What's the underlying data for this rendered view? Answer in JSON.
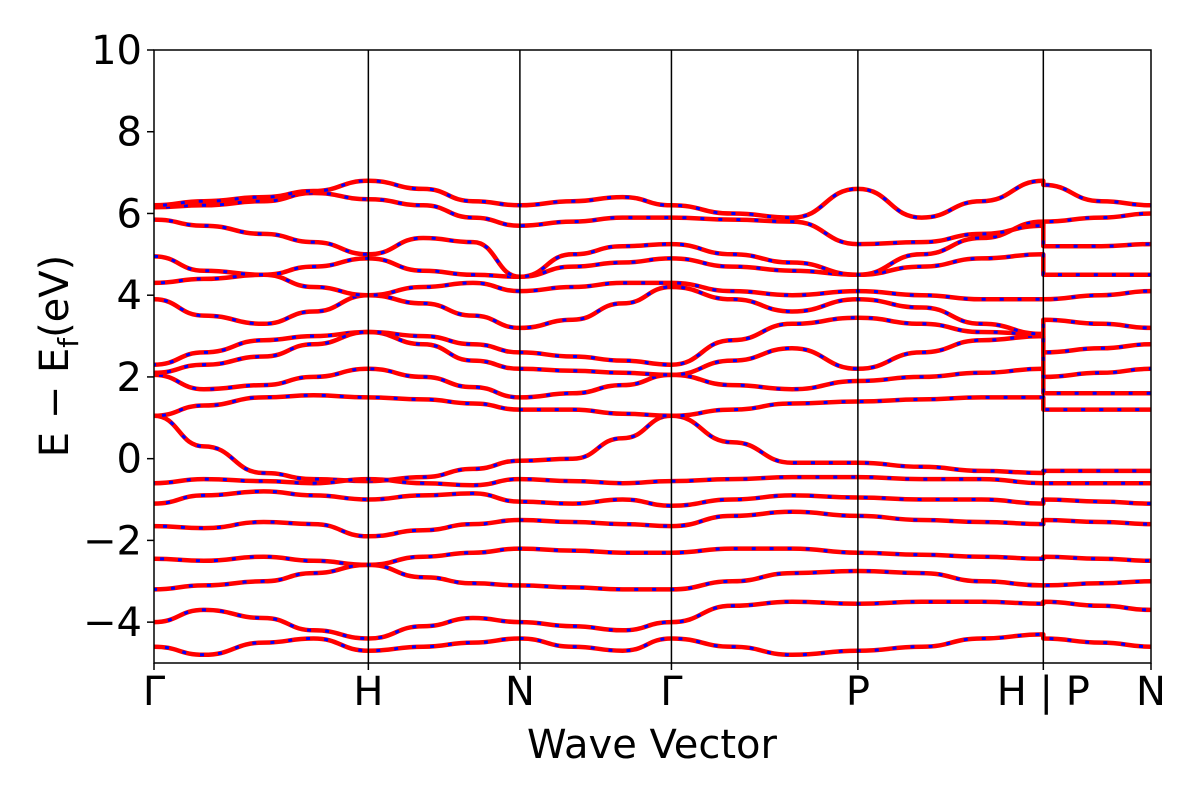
{
  "chart_data": {
    "type": "line",
    "title": "",
    "xlabel": "Wave Vector",
    "ylabel_main": "E − E",
    "ylabel_sub": "f",
    "ylabel_unit": "(eV)",
    "ylim": [
      -5,
      10
    ],
    "y_ticks": [
      -4,
      -2,
      0,
      2,
      4,
      6,
      8,
      10
    ],
    "y_tick_labels": [
      "−4",
      "−2",
      "0",
      "2",
      "4",
      "6",
      "8",
      "10"
    ],
    "x_range": [
      0,
      1
    ],
    "k_points": [
      {
        "label": "Γ",
        "x": 0.0
      },
      {
        "label": "H",
        "x": 0.215
      },
      {
        "label": "N",
        "x": 0.367
      },
      {
        "label": "Γ",
        "x": 0.519
      },
      {
        "label": "P",
        "x": 0.706
      },
      {
        "label": "H | P",
        "x": 0.892
      },
      {
        "label": "N",
        "x": 1.0
      }
    ],
    "colors": {
      "band_red": "#ff0000",
      "band_blue": "#0000ff"
    },
    "grid": false,
    "series": [
      {
        "color": "#ff0000",
        "style": "solid",
        "x": [
          0.0,
          0.05,
          0.11,
          0.16,
          0.215,
          0.27,
          0.32,
          0.367,
          0.42,
          0.47,
          0.519,
          0.58,
          0.64,
          0.706,
          0.77,
          0.83,
          0.892,
          0.892,
          0.95,
          1.0
        ],
        "y": [
          1.05,
          0.3,
          -0.35,
          -0.5,
          -0.55,
          -0.45,
          -0.25,
          -0.05,
          0.0,
          0.5,
          1.05,
          0.4,
          -0.1,
          -0.1,
          -0.2,
          -0.3,
          -0.35,
          -0.3,
          -0.3,
          -0.3
        ]
      },
      {
        "color": "#ff0000",
        "style": "solid",
        "x": [
          0.0,
          0.05,
          0.11,
          0.16,
          0.215,
          0.27,
          0.32,
          0.367,
          0.42,
          0.47,
          0.519,
          0.58,
          0.64,
          0.706,
          0.77,
          0.83,
          0.892,
          0.892,
          0.95,
          1.0
        ],
        "y": [
          -0.6,
          -0.5,
          -0.55,
          -0.6,
          -0.5,
          -0.6,
          -0.65,
          -0.5,
          -0.55,
          -0.6,
          -0.55,
          -0.5,
          -0.45,
          -0.45,
          -0.5,
          -0.5,
          -0.6,
          -0.6,
          -0.6,
          -0.6
        ]
      },
      {
        "color": "#ff0000",
        "style": "solid",
        "x": [
          0.0,
          0.05,
          0.11,
          0.16,
          0.215,
          0.27,
          0.32,
          0.367,
          0.42,
          0.47,
          0.519,
          0.58,
          0.64,
          0.706,
          0.77,
          0.83,
          0.892,
          0.892,
          0.95,
          1.0
        ],
        "y": [
          -1.1,
          -0.9,
          -0.8,
          -0.9,
          -1.0,
          -0.9,
          -0.85,
          -1.05,
          -1.1,
          -1.0,
          -1.15,
          -1.0,
          -0.9,
          -0.95,
          -1.0,
          -1.0,
          -1.1,
          -1.0,
          -1.05,
          -1.1
        ]
      },
      {
        "color": "#ff0000",
        "style": "solid",
        "x": [
          0.0,
          0.05,
          0.11,
          0.16,
          0.215,
          0.27,
          0.32,
          0.367,
          0.42,
          0.47,
          0.519,
          0.58,
          0.64,
          0.706,
          0.77,
          0.83,
          0.892,
          0.892,
          0.95,
          1.0
        ],
        "y": [
          -1.65,
          -1.7,
          -1.55,
          -1.6,
          -1.9,
          -1.75,
          -1.6,
          -1.5,
          -1.55,
          -1.6,
          -1.65,
          -1.4,
          -1.3,
          -1.4,
          -1.5,
          -1.55,
          -1.6,
          -1.5,
          -1.55,
          -1.6
        ]
      },
      {
        "color": "#ff0000",
        "style": "solid",
        "x": [
          0.0,
          0.05,
          0.11,
          0.16,
          0.215,
          0.27,
          0.32,
          0.367,
          0.42,
          0.47,
          0.519,
          0.58,
          0.64,
          0.706,
          0.77,
          0.83,
          0.892,
          0.892,
          0.95,
          1.0
        ],
        "y": [
          -2.45,
          -2.5,
          -2.4,
          -2.5,
          -2.6,
          -2.4,
          -2.3,
          -2.2,
          -2.25,
          -2.3,
          -2.3,
          -2.2,
          -2.2,
          -2.3,
          -2.35,
          -2.4,
          -2.45,
          -2.4,
          -2.45,
          -2.5
        ]
      },
      {
        "color": "#ff0000",
        "style": "solid",
        "x": [
          0.0,
          0.05,
          0.11,
          0.16,
          0.215,
          0.27,
          0.32,
          0.367,
          0.42,
          0.47,
          0.519,
          0.58,
          0.64,
          0.706,
          0.77,
          0.83,
          0.892,
          0.892,
          0.95,
          1.0
        ],
        "y": [
          -3.2,
          -3.1,
          -3.0,
          -2.8,
          -2.6,
          -2.9,
          -3.05,
          -3.1,
          -3.15,
          -3.2,
          -3.2,
          -3.0,
          -2.8,
          -2.75,
          -2.8,
          -3.0,
          -3.1,
          -3.1,
          -3.05,
          -3.0
        ]
      },
      {
        "color": "#ff0000",
        "style": "solid",
        "x": [
          0.0,
          0.05,
          0.11,
          0.16,
          0.215,
          0.27,
          0.32,
          0.367,
          0.42,
          0.47,
          0.519,
          0.58,
          0.64,
          0.706,
          0.77,
          0.83,
          0.892,
          0.892,
          0.95,
          1.0
        ],
        "y": [
          -4.0,
          -3.7,
          -3.9,
          -4.2,
          -4.4,
          -4.1,
          -3.9,
          -4.0,
          -4.1,
          -4.2,
          -4.0,
          -3.6,
          -3.5,
          -3.55,
          -3.5,
          -3.5,
          -3.55,
          -3.5,
          -3.6,
          -3.7
        ]
      },
      {
        "color": "#ff0000",
        "style": "solid",
        "x": [
          0.0,
          0.05,
          0.11,
          0.16,
          0.215,
          0.27,
          0.32,
          0.367,
          0.42,
          0.47,
          0.519,
          0.58,
          0.64,
          0.706,
          0.77,
          0.83,
          0.892,
          0.892,
          0.95,
          1.0
        ],
        "y": [
          -4.6,
          -4.8,
          -4.5,
          -4.4,
          -4.7,
          -4.6,
          -4.5,
          -4.4,
          -4.6,
          -4.7,
          -4.4,
          -4.6,
          -4.8,
          -4.7,
          -4.6,
          -4.4,
          -4.3,
          -4.4,
          -4.5,
          -4.6
        ]
      },
      {
        "color": "#ff0000",
        "style": "solid",
        "x": [
          0.0,
          0.05,
          0.11,
          0.16,
          0.215,
          0.27,
          0.32,
          0.367,
          0.42,
          0.47,
          0.519,
          0.58,
          0.64,
          0.706,
          0.77,
          0.83,
          0.892,
          0.892,
          0.95,
          1.0
        ],
        "y": [
          1.05,
          1.3,
          1.5,
          1.55,
          1.5,
          1.45,
          1.35,
          1.2,
          1.2,
          1.1,
          1.05,
          1.2,
          1.35,
          1.4,
          1.45,
          1.5,
          1.5,
          1.2,
          1.2,
          1.2
        ]
      },
      {
        "color": "#ff0000",
        "style": "solid",
        "x": [
          0.0,
          0.05,
          0.11,
          0.16,
          0.215,
          0.27,
          0.32,
          0.367,
          0.42,
          0.47,
          0.519,
          0.58,
          0.64,
          0.706,
          0.77,
          0.83,
          0.892,
          0.892,
          0.95,
          1.0
        ],
        "y": [
          2.05,
          1.7,
          1.8,
          2.0,
          2.2,
          2.0,
          1.75,
          1.5,
          1.6,
          1.8,
          2.05,
          1.8,
          1.7,
          1.9,
          2.0,
          2.1,
          2.2,
          1.6,
          1.6,
          1.6
        ]
      },
      {
        "color": "#ff0000",
        "style": "solid",
        "x": [
          0.0,
          0.05,
          0.11,
          0.16,
          0.215,
          0.27,
          0.32,
          0.367,
          0.42,
          0.47,
          0.519,
          0.58,
          0.64,
          0.706,
          0.77,
          0.83,
          0.892,
          0.892,
          0.95,
          1.0
        ],
        "y": [
          2.3,
          2.6,
          2.9,
          3.0,
          3.1,
          2.8,
          2.4,
          2.2,
          2.15,
          2.1,
          2.05,
          2.4,
          2.7,
          2.2,
          2.6,
          2.9,
          3.0,
          2.0,
          2.1,
          2.2
        ]
      },
      {
        "color": "#ff0000",
        "style": "solid",
        "x": [
          0.0,
          0.05,
          0.11,
          0.16,
          0.215,
          0.27,
          0.32,
          0.367,
          0.42,
          0.47,
          0.519,
          0.58,
          0.64,
          0.706,
          0.77,
          0.83,
          0.892,
          0.892,
          0.95,
          1.0
        ],
        "y": [
          2.1,
          2.3,
          2.5,
          2.8,
          3.1,
          3.0,
          2.8,
          2.6,
          2.5,
          2.4,
          2.3,
          2.9,
          3.3,
          3.45,
          3.3,
          3.1,
          3.05,
          2.6,
          2.7,
          2.8
        ]
      },
      {
        "color": "#ff0000",
        "style": "solid",
        "x": [
          0.0,
          0.05,
          0.11,
          0.16,
          0.215,
          0.27,
          0.32,
          0.367,
          0.42,
          0.47,
          0.519,
          0.58,
          0.64,
          0.706,
          0.77,
          0.83,
          0.892,
          0.892,
          0.95,
          1.0
        ],
        "y": [
          3.9,
          3.5,
          3.3,
          3.6,
          4.0,
          3.8,
          3.5,
          3.2,
          3.4,
          3.8,
          4.2,
          3.9,
          3.6,
          3.9,
          3.7,
          3.3,
          3.05,
          3.4,
          3.3,
          3.2
        ]
      },
      {
        "color": "#ff0000",
        "style": "solid",
        "x": [
          0.0,
          0.05,
          0.11,
          0.16,
          0.215,
          0.27,
          0.32,
          0.367,
          0.42,
          0.47,
          0.519,
          0.58,
          0.64,
          0.706,
          0.77,
          0.83,
          0.892,
          0.892,
          0.95,
          1.0
        ],
        "y": [
          4.3,
          4.4,
          4.5,
          4.2,
          4.0,
          4.2,
          4.3,
          4.1,
          4.2,
          4.3,
          4.3,
          4.1,
          4.0,
          4.1,
          4.0,
          3.9,
          3.9,
          3.9,
          4.0,
          4.1
        ]
      },
      {
        "color": "#ff0000",
        "style": "solid",
        "x": [
          0.0,
          0.05,
          0.11,
          0.16,
          0.215,
          0.27,
          0.32,
          0.367,
          0.42,
          0.47,
          0.519,
          0.58,
          0.64,
          0.706,
          0.77,
          0.83,
          0.892,
          0.892,
          0.95,
          1.0
        ],
        "y": [
          4.95,
          4.6,
          4.5,
          4.7,
          4.9,
          4.6,
          4.5,
          4.45,
          4.7,
          4.8,
          4.9,
          4.7,
          4.6,
          4.5,
          4.7,
          4.9,
          5.0,
          4.5,
          4.5,
          4.5
        ]
      },
      {
        "color": "#ff0000",
        "style": "solid",
        "x": [
          0.0,
          0.05,
          0.11,
          0.16,
          0.215,
          0.27,
          0.32,
          0.367,
          0.42,
          0.47,
          0.519,
          0.58,
          0.64,
          0.706,
          0.77,
          0.83,
          0.892,
          0.892,
          0.95,
          1.0
        ],
        "y": [
          5.85,
          5.7,
          5.5,
          5.3,
          5.0,
          5.4,
          5.3,
          4.45,
          5.0,
          5.2,
          5.25,
          5.0,
          4.8,
          4.5,
          5.0,
          5.4,
          5.8,
          5.2,
          5.2,
          5.25
        ]
      },
      {
        "color": "#ff0000",
        "style": "solid",
        "x": [
          0.0,
          0.05,
          0.11,
          0.16,
          0.215,
          0.27,
          0.32,
          0.367,
          0.42,
          0.47,
          0.519,
          0.58,
          0.64,
          0.706,
          0.77,
          0.83,
          0.892,
          0.892,
          0.95,
          1.0
        ],
        "y": [
          6.15,
          6.2,
          6.3,
          6.5,
          6.35,
          6.2,
          5.9,
          5.7,
          5.8,
          5.9,
          5.9,
          5.85,
          5.8,
          5.25,
          5.3,
          5.5,
          5.7,
          5.8,
          5.9,
          6.0
        ]
      },
      {
        "color": "#ff0000",
        "style": "solid",
        "x": [
          0.0,
          0.05,
          0.11,
          0.16,
          0.215,
          0.27,
          0.32,
          0.367,
          0.42,
          0.47,
          0.519,
          0.58,
          0.64,
          0.706,
          0.77,
          0.83,
          0.892,
          0.892,
          0.95,
          1.0
        ],
        "y": [
          6.2,
          6.3,
          6.4,
          6.55,
          6.8,
          6.6,
          6.3,
          6.2,
          6.3,
          6.4,
          6.2,
          6.0,
          5.9,
          6.6,
          5.9,
          6.3,
          6.8,
          6.7,
          6.3,
          6.2
        ]
      }
    ]
  }
}
